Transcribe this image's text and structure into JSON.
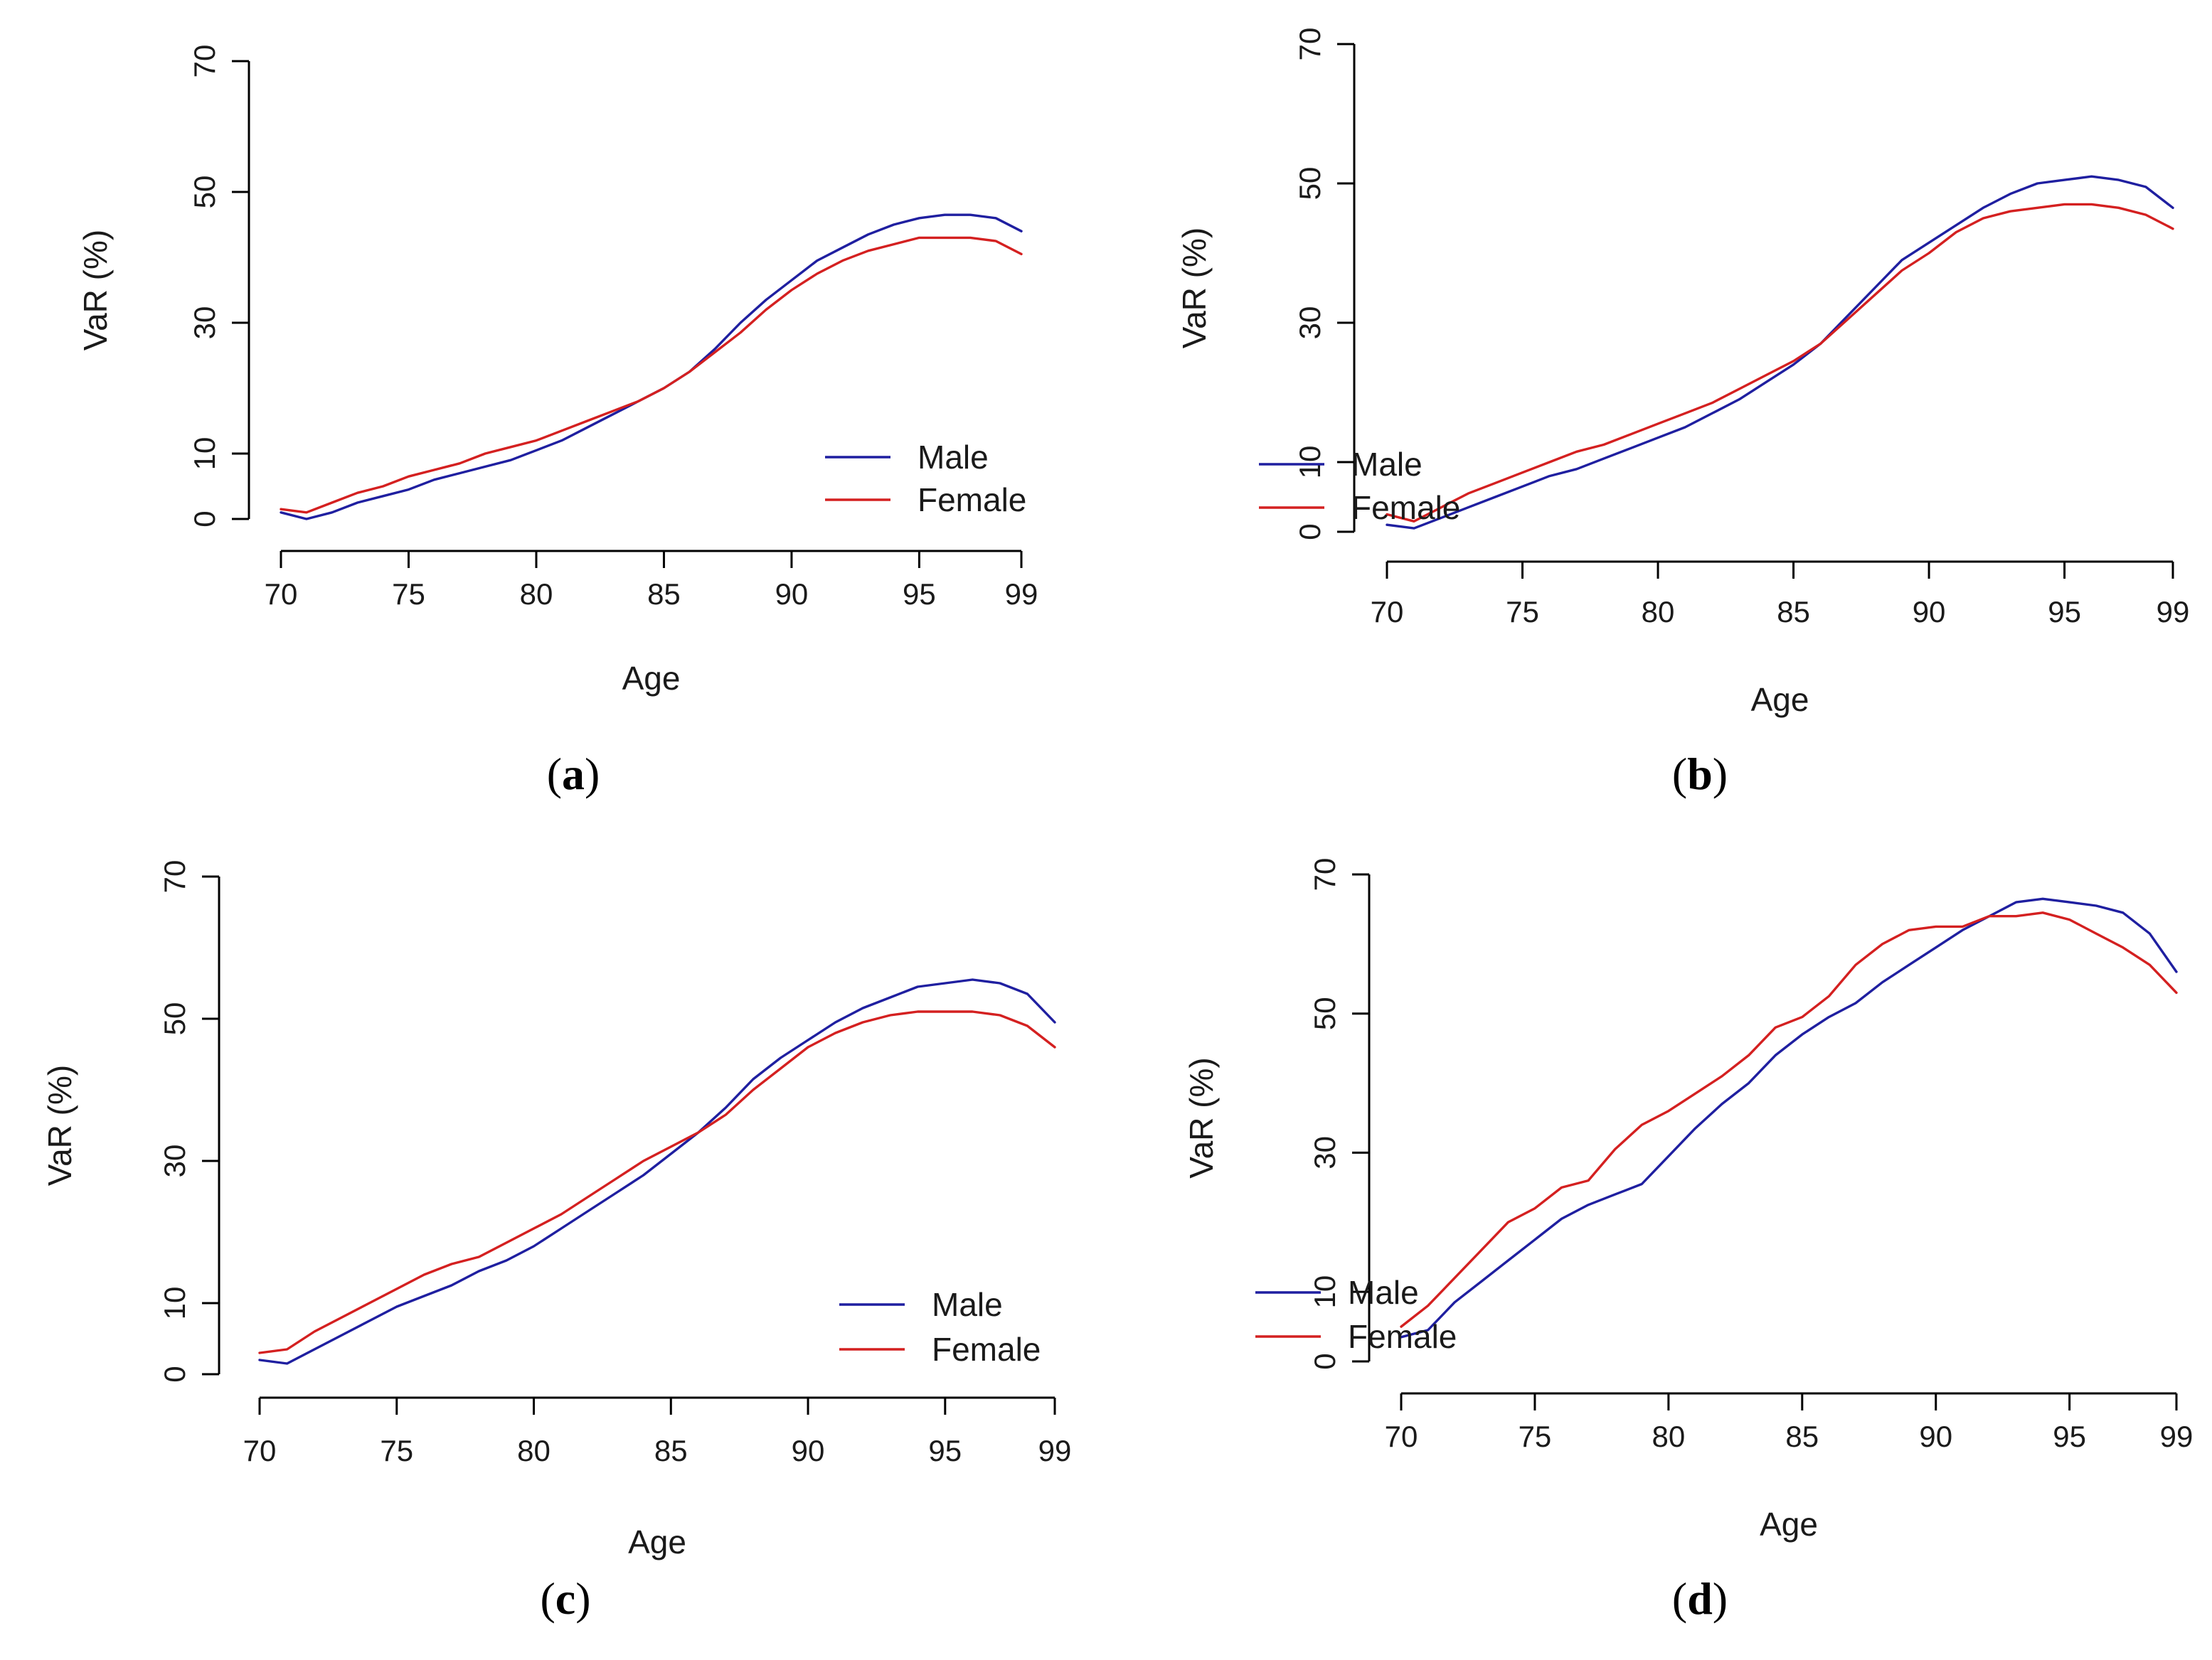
{
  "colors": {
    "male": "#1f1fa0",
    "female": "#d42020",
    "axis": "#000000"
  },
  "chart_data": [
    {
      "type": "line",
      "panel": "a",
      "panel_label": "a",
      "xlabel": "Age",
      "ylabel": "VaR (%)",
      "xlim": [
        70,
        99
      ],
      "ylim": [
        0,
        70
      ],
      "xticks": [
        70,
        75,
        80,
        85,
        90,
        95,
        99
      ],
      "yticks": [
        0,
        10,
        30,
        50,
        70
      ],
      "legend": {
        "position": "right",
        "entries": [
          "Male",
          "Female"
        ]
      },
      "x": [
        70,
        71,
        72,
        73,
        74,
        75,
        76,
        77,
        78,
        79,
        80,
        81,
        82,
        83,
        84,
        85,
        86,
        87,
        88,
        89,
        90,
        91,
        92,
        93,
        94,
        95,
        96,
        97,
        98,
        99
      ],
      "series": [
        {
          "name": "Male",
          "color": "#1f1fa0",
          "values": [
            1,
            0,
            1,
            2.5,
            3.5,
            4.5,
            6,
            7,
            8,
            9,
            10.5,
            12,
            14,
            16,
            18,
            20,
            22.5,
            26,
            30,
            33.5,
            36.5,
            39.5,
            41.5,
            43.5,
            45,
            46,
            46.5,
            46.5,
            46,
            44
          ]
        },
        {
          "name": "Female",
          "color": "#d42020",
          "values": [
            1.5,
            1,
            2.5,
            4,
            5,
            6.5,
            7.5,
            8.5,
            10,
            11,
            12,
            13.5,
            15,
            16.5,
            18,
            20,
            22.5,
            25.5,
            28.5,
            32,
            35,
            37.5,
            39.5,
            41,
            42,
            43,
            43,
            43,
            42.5,
            40.5
          ]
        }
      ]
    },
    {
      "type": "line",
      "panel": "b",
      "panel_label": "b",
      "xlabel": "Age",
      "ylabel": "VaR (%)",
      "xlim": [
        70,
        99
      ],
      "ylim": [
        0,
        70
      ],
      "xticks": [
        70,
        75,
        80,
        85,
        90,
        95,
        99
      ],
      "yticks": [
        0,
        10,
        30,
        50,
        70
      ],
      "legend": {
        "position": "right",
        "entries": [
          "Male",
          "Female"
        ]
      },
      "x": [
        70,
        71,
        72,
        73,
        74,
        75,
        76,
        77,
        78,
        79,
        80,
        81,
        82,
        83,
        84,
        85,
        86,
        87,
        88,
        89,
        90,
        91,
        92,
        93,
        94,
        95,
        96,
        97,
        98,
        99
      ],
      "series": [
        {
          "name": "Male",
          "color": "#1f1fa0",
          "values": [
            1,
            0.5,
            2,
            3.5,
            5,
            6.5,
            8,
            9,
            10.5,
            12,
            13.5,
            15,
            17,
            19,
            21.5,
            24,
            27,
            31,
            35,
            39,
            41.5,
            44,
            46.5,
            48.5,
            50,
            50.5,
            51,
            50.5,
            49.5,
            46.5
          ]
        },
        {
          "name": "Female",
          "color": "#d42020",
          "values": [
            2.5,
            1.5,
            3.5,
            5.5,
            7,
            8.5,
            10,
            11.5,
            12.5,
            14,
            15.5,
            17,
            18.5,
            20.5,
            22.5,
            24.5,
            27,
            30.5,
            34,
            37.5,
            40,
            43,
            45,
            46,
            46.5,
            47,
            47,
            46.5,
            45.5,
            43.5
          ]
        }
      ]
    },
    {
      "type": "line",
      "panel": "c",
      "panel_label": "c",
      "xlabel": "Age",
      "ylabel": "VaR (%)",
      "xlim": [
        70,
        99
      ],
      "ylim": [
        0,
        70
      ],
      "xticks": [
        70,
        75,
        80,
        85,
        90,
        95,
        99
      ],
      "yticks": [
        0,
        10,
        30,
        50,
        70
      ],
      "legend": {
        "position": "right",
        "entries": [
          "Male",
          "Female"
        ]
      },
      "x": [
        70,
        71,
        72,
        73,
        74,
        75,
        76,
        77,
        78,
        79,
        80,
        81,
        82,
        83,
        84,
        85,
        86,
        87,
        88,
        89,
        90,
        91,
        92,
        93,
        94,
        95,
        96,
        97,
        98,
        99
      ],
      "series": [
        {
          "name": "Male",
          "color": "#1f1fa0",
          "values": [
            2,
            1.5,
            3.5,
            5.5,
            7.5,
            9.5,
            11,
            12.5,
            14.5,
            16,
            18,
            20.5,
            23,
            25.5,
            28,
            31,
            34,
            37.5,
            41.5,
            44.5,
            47,
            49.5,
            51.5,
            53,
            54.5,
            55,
            55.5,
            55,
            53.5,
            49.5
          ]
        },
        {
          "name": "Female",
          "color": "#d42020",
          "values": [
            3,
            3.5,
            6,
            8,
            10,
            12,
            14,
            15.5,
            16.5,
            18.5,
            20.5,
            22.5,
            25,
            27.5,
            30,
            32,
            34,
            36.5,
            40,
            43,
            46,
            48,
            49.5,
            50.5,
            51,
            51,
            51,
            50.5,
            49,
            46
          ]
        }
      ]
    },
    {
      "type": "line",
      "panel": "d",
      "panel_label": "d",
      "xlabel": "Age",
      "ylabel": "VaR (%)",
      "xlim": [
        70,
        99
      ],
      "ylim": [
        0,
        70
      ],
      "xticks": [
        70,
        75,
        80,
        85,
        90,
        95,
        99
      ],
      "yticks": [
        0,
        10,
        30,
        50,
        70
      ],
      "legend": {
        "position": "right",
        "entries": [
          "Male",
          "Female"
        ]
      },
      "x": [
        70,
        71,
        72,
        73,
        74,
        75,
        76,
        77,
        78,
        79,
        80,
        81,
        82,
        83,
        84,
        85,
        86,
        87,
        88,
        89,
        90,
        91,
        92,
        93,
        94,
        95,
        96,
        97,
        98,
        99
      ],
      "series": [
        {
          "name": "Male",
          "color": "#1f1fa0",
          "values": [
            3.5,
            4.5,
            8.5,
            11.5,
            14.5,
            17.5,
            20.5,
            22.5,
            24,
            25.5,
            29.5,
            33.5,
            37,
            40,
            44,
            47,
            49.5,
            51.5,
            54.5,
            57,
            59.5,
            62,
            64,
            66,
            66.5,
            66,
            65.5,
            64.5,
            61.5,
            56
          ]
        },
        {
          "name": "Female",
          "color": "#d42020",
          "values": [
            5,
            8,
            12,
            16,
            20,
            22,
            25,
            26,
            30.5,
            34,
            36,
            38.5,
            41,
            44,
            48,
            49.5,
            52.5,
            57,
            60,
            62,
            62.5,
            62.5,
            64,
            64,
            64.5,
            63.5,
            61.5,
            59.5,
            57,
            53
          ]
        }
      ]
    }
  ]
}
